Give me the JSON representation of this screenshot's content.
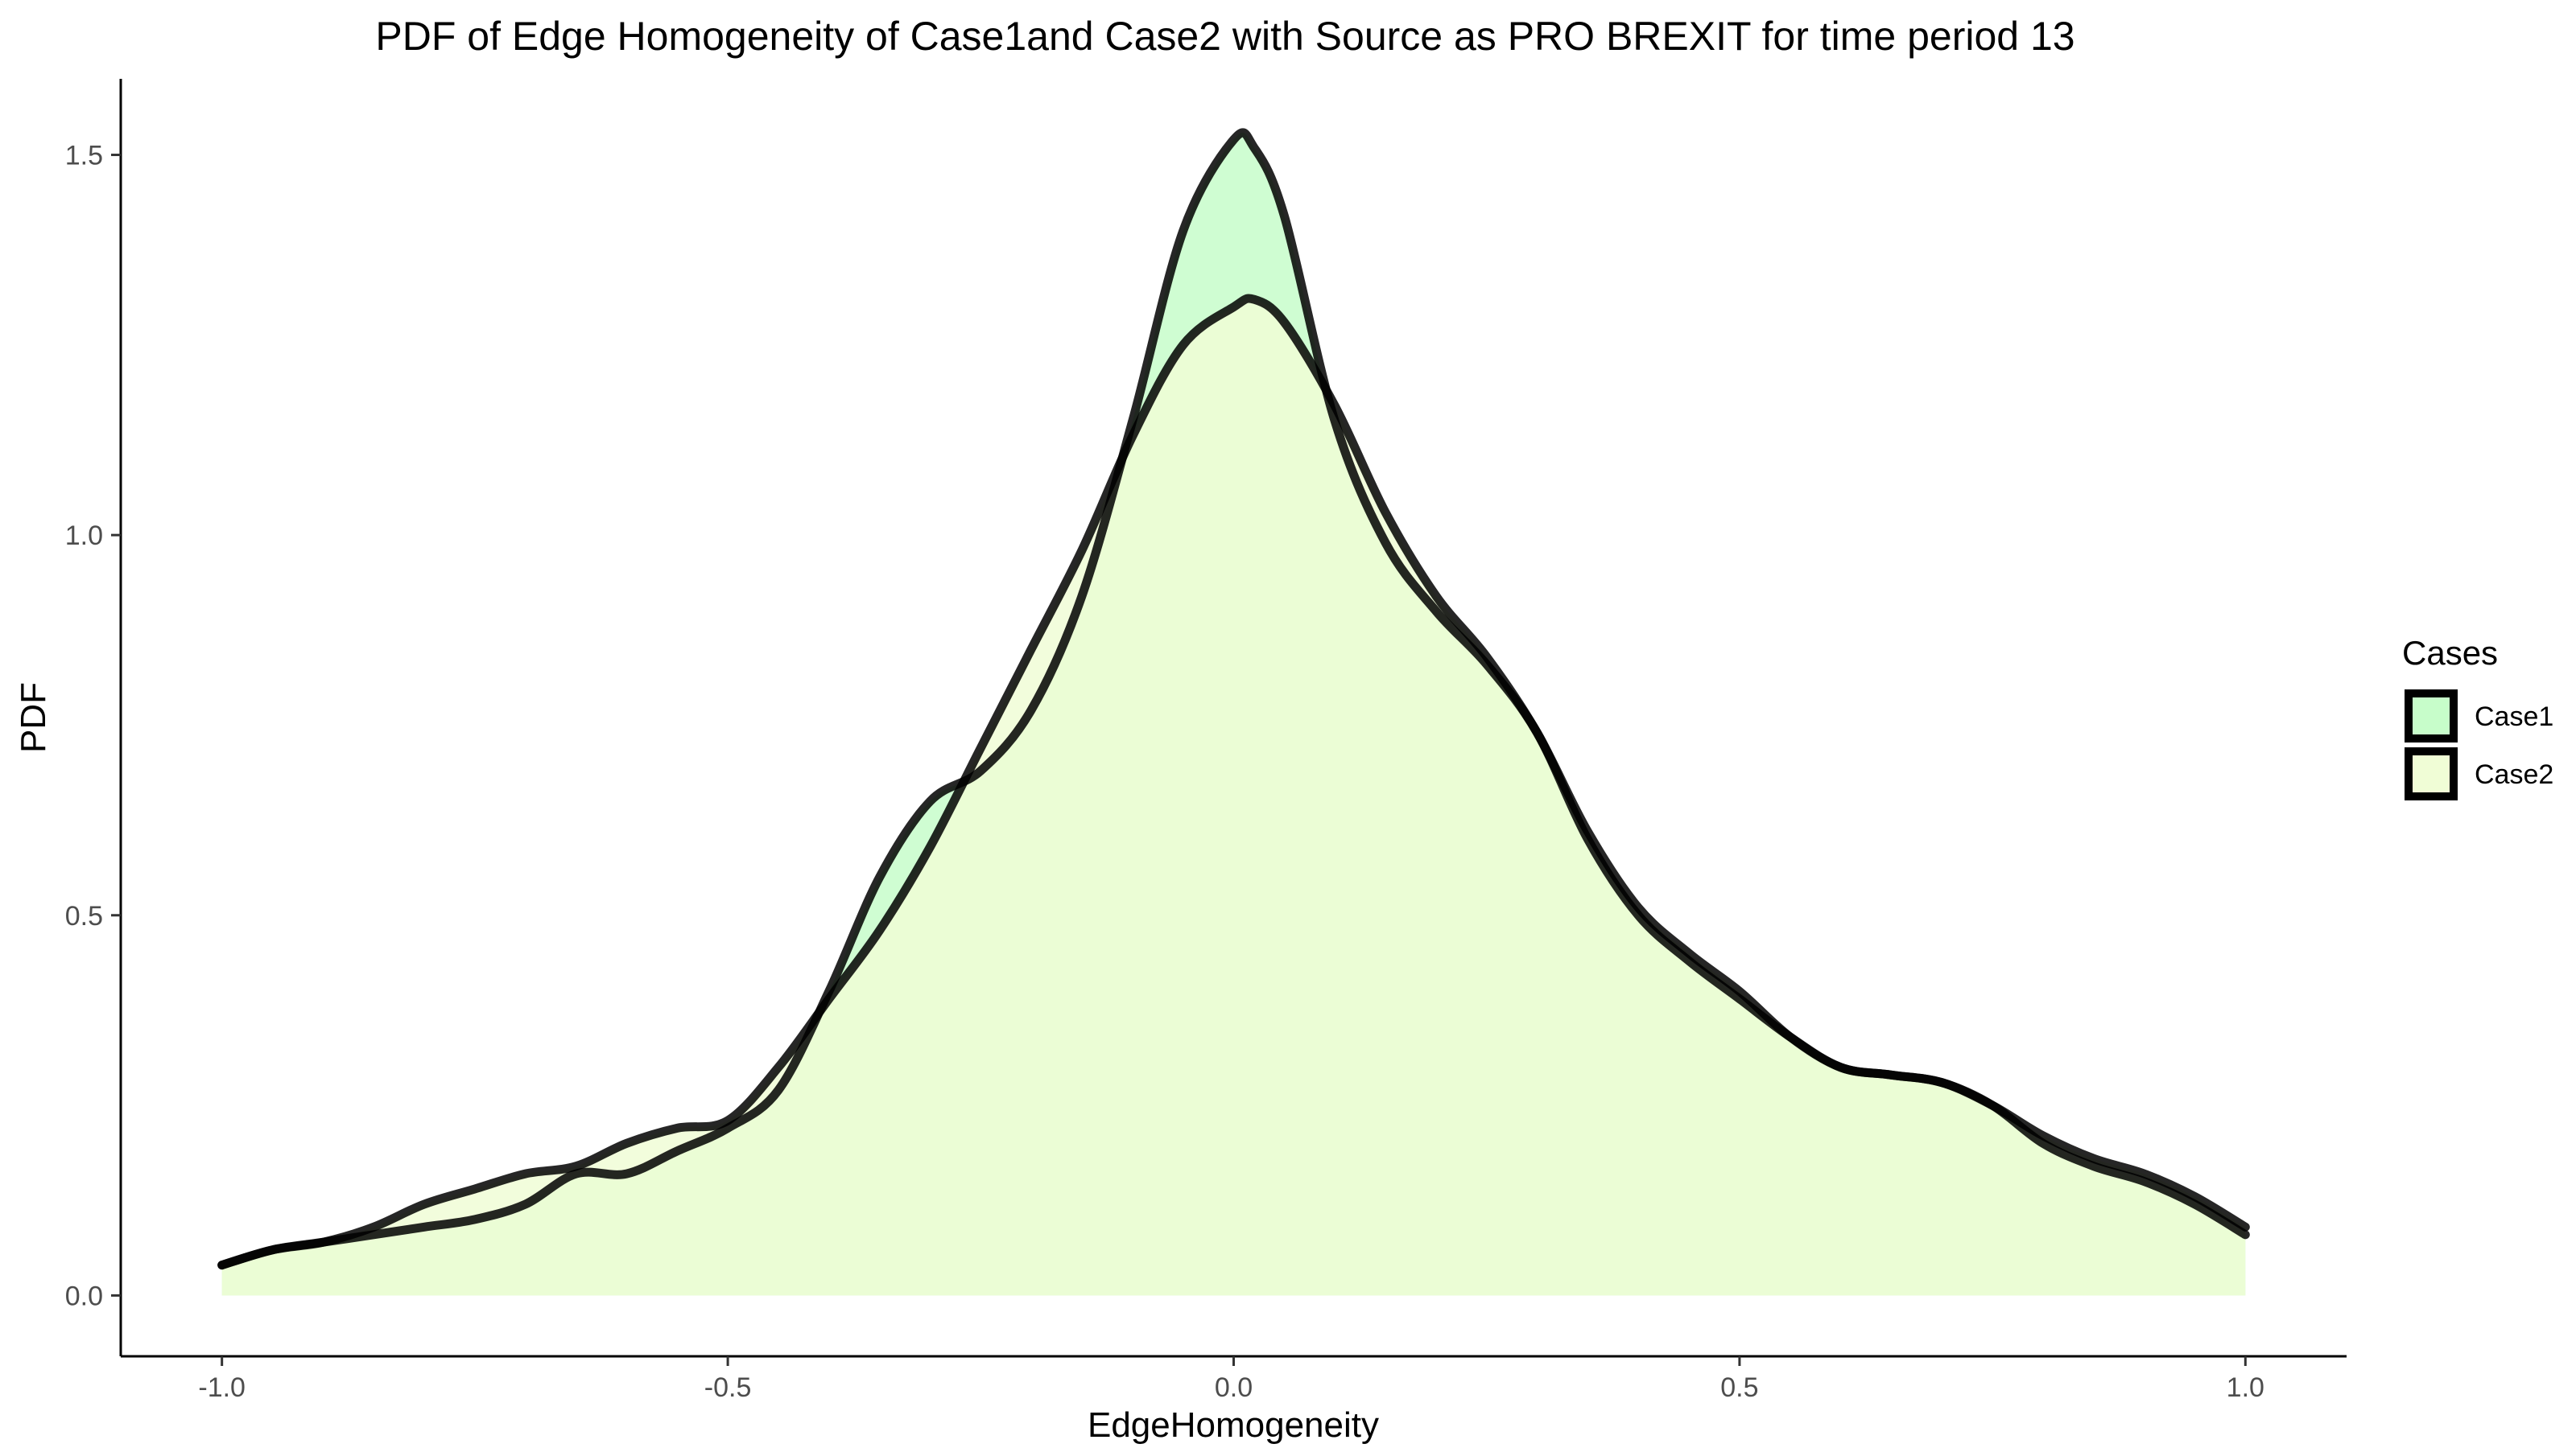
{
  "chart_data": {
    "type": "area",
    "title": "PDF of Edge Homogeneity of Case1and Case2 with Source as PRO BREXIT for time period 13",
    "xlabel": "EdgeHomogeneity",
    "ylabel": "PDF",
    "xlim": [
      -1.1,
      1.1
    ],
    "ylim": [
      -0.08,
      1.6
    ],
    "x_ticks": [
      -1.0,
      -0.5,
      0.0,
      0.5,
      1.0
    ],
    "x_tick_labels": [
      "-1.0",
      "-0.5",
      "0.0",
      "0.5",
      "1.0"
    ],
    "y_ticks": [
      0.0,
      0.5,
      1.0,
      1.5
    ],
    "y_tick_labels": [
      "0.0",
      "0.5",
      "1.0",
      "1.5"
    ],
    "grid": false,
    "legend": {
      "title": "Cases",
      "position": "right"
    },
    "series": [
      {
        "name": "Case1",
        "fill": "#c7fdca",
        "x": [
          -1.0,
          -0.95,
          -0.9,
          -0.85,
          -0.8,
          -0.75,
          -0.7,
          -0.65,
          -0.6,
          -0.55,
          -0.5,
          -0.45,
          -0.4,
          -0.35,
          -0.3,
          -0.25,
          -0.2,
          -0.15,
          -0.1,
          -0.05,
          0.0,
          0.02,
          0.05,
          0.1,
          0.15,
          0.2,
          0.25,
          0.3,
          0.35,
          0.4,
          0.45,
          0.5,
          0.55,
          0.6,
          0.65,
          0.7,
          0.75,
          0.8,
          0.85,
          0.9,
          0.95,
          1.0
        ],
        "y": [
          0.04,
          0.06,
          0.07,
          0.08,
          0.09,
          0.1,
          0.12,
          0.16,
          0.16,
          0.19,
          0.22,
          0.27,
          0.4,
          0.55,
          0.65,
          0.69,
          0.77,
          0.92,
          1.15,
          1.4,
          1.52,
          1.51,
          1.42,
          1.15,
          0.99,
          0.9,
          0.83,
          0.74,
          0.6,
          0.5,
          0.44,
          0.39,
          0.34,
          0.3,
          0.29,
          0.28,
          0.25,
          0.2,
          0.17,
          0.15,
          0.12,
          0.08
        ]
      },
      {
        "name": "Case2",
        "fill": "#f0fdd6",
        "x": [
          -1.0,
          -0.95,
          -0.9,
          -0.85,
          -0.8,
          -0.75,
          -0.7,
          -0.65,
          -0.6,
          -0.55,
          -0.5,
          -0.45,
          -0.4,
          -0.35,
          -0.3,
          -0.25,
          -0.2,
          -0.15,
          -0.1,
          -0.05,
          0.0,
          0.02,
          0.05,
          0.1,
          0.15,
          0.2,
          0.25,
          0.3,
          0.35,
          0.4,
          0.45,
          0.5,
          0.55,
          0.6,
          0.65,
          0.7,
          0.75,
          0.8,
          0.85,
          0.9,
          0.95,
          1.0
        ],
        "y": [
          0.04,
          0.06,
          0.07,
          0.09,
          0.12,
          0.14,
          0.16,
          0.17,
          0.2,
          0.22,
          0.23,
          0.3,
          0.39,
          0.48,
          0.59,
          0.72,
          0.85,
          0.98,
          1.13,
          1.25,
          1.3,
          1.31,
          1.28,
          1.17,
          1.03,
          0.92,
          0.84,
          0.74,
          0.61,
          0.51,
          0.45,
          0.4,
          0.34,
          0.3,
          0.29,
          0.28,
          0.25,
          0.21,
          0.18,
          0.16,
          0.13,
          0.09
        ]
      }
    ]
  }
}
